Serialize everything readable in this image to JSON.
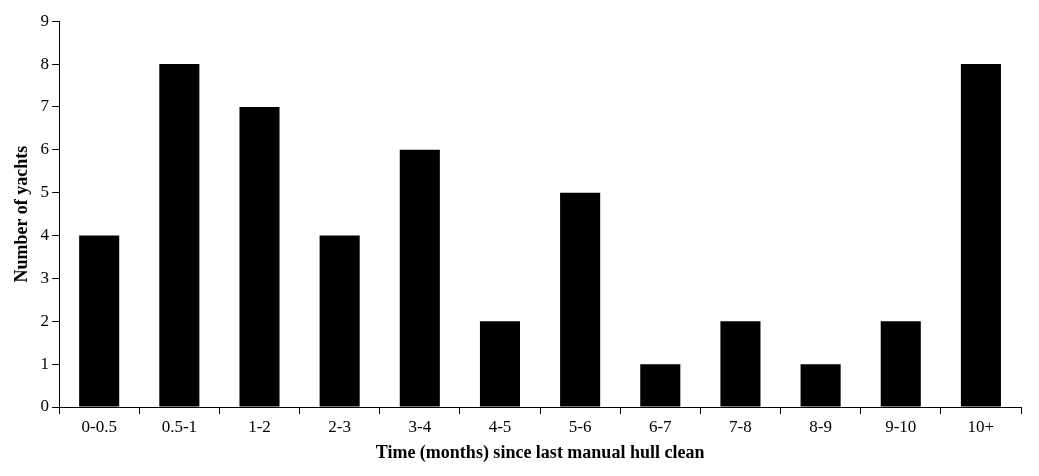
{
  "chart_data": {
    "type": "bar",
    "xlabel": "Time (months) since last manual hull clean",
    "ylabel": "Number of yachts",
    "categories": [
      "0-0.5",
      "0.5-1",
      "1-2",
      "2-3",
      "3-4",
      "4-5",
      "5-6",
      "6-7",
      "7-8",
      "8-9",
      "9-10",
      "10+"
    ],
    "values": [
      4,
      8,
      7,
      4,
      6,
      2,
      5,
      1,
      2,
      1,
      2,
      8
    ],
    "color": "#000000",
    "ylim": [
      0,
      9
    ],
    "yticks": [
      0,
      1,
      2,
      3,
      4,
      5,
      6,
      7,
      8,
      9
    ],
    "grid": false,
    "legend": false
  }
}
